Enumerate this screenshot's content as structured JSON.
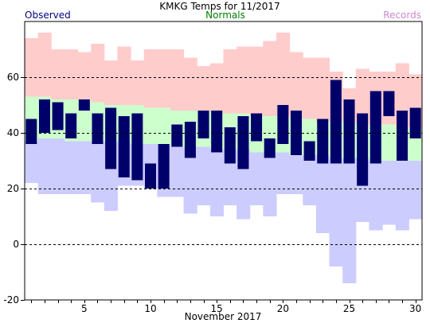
{
  "chart_data": {
    "type": "bar",
    "title": "KMKG Temps for 11/2017",
    "xlabel": "November 2017",
    "ylabel": "",
    "legend": [
      "Observed",
      "Normals",
      "Records"
    ],
    "ylim": [
      -20,
      80
    ],
    "yticks": [
      -20,
      0,
      20,
      40,
      60
    ],
    "gridlines_dashed": [
      0,
      20,
      40,
      60
    ],
    "xticks": [
      5,
      10,
      15,
      20,
      25,
      30
    ],
    "days": [
      1,
      2,
      3,
      4,
      5,
      6,
      7,
      8,
      9,
      10,
      11,
      12,
      13,
      14,
      15,
      16,
      17,
      18,
      19,
      20,
      21,
      22,
      23,
      24,
      25,
      26,
      27,
      28,
      29,
      30
    ],
    "observed_high": [
      45,
      52,
      51,
      47,
      52,
      47,
      49,
      46,
      47,
      29,
      36,
      43,
      44,
      48,
      48,
      42,
      46,
      47,
      38,
      50,
      48,
      37,
      45,
      59,
      52,
      47,
      55,
      55,
      48,
      49
    ],
    "observed_low": [
      36,
      40,
      41,
      38,
      48,
      36,
      27,
      24,
      23,
      20,
      20,
      35,
      31,
      38,
      33,
      29,
      27,
      37,
      31,
      36,
      32,
      30,
      29,
      29,
      29,
      21,
      29,
      46,
      30,
      38
    ],
    "normal_high": [
      53,
      53,
      52,
      52,
      52,
      51,
      50,
      50,
      50,
      49,
      49,
      48,
      48,
      48,
      47,
      47,
      47,
      46,
      46,
      46,
      45,
      45,
      44,
      44,
      44,
      43,
      43,
      43,
      42,
      42
    ],
    "normal_low": [
      37,
      38,
      38,
      37,
      37,
      37,
      37,
      37,
      36,
      36,
      36,
      35,
      35,
      35,
      34,
      34,
      34,
      33,
      33,
      33,
      32,
      32,
      32,
      31,
      31,
      31,
      30,
      30,
      30,
      30
    ],
    "record_high": [
      74,
      76,
      70,
      70,
      69,
      72,
      66,
      71,
      66,
      70,
      70,
      70,
      67,
      64,
      65,
      70,
      71,
      71,
      73,
      76,
      69,
      67,
      67,
      62,
      56,
      63,
      62,
      62,
      65,
      61
    ],
    "record_low": [
      22,
      18,
      18,
      18,
      18,
      15,
      12,
      21,
      21,
      20,
      17,
      17,
      11,
      14,
      10,
      14,
      9,
      14,
      10,
      18,
      18,
      14,
      4,
      -8,
      -14,
      8,
      5,
      7,
      5,
      9
    ],
    "colors": {
      "observed": "#00006b",
      "normals": "#ccffcc",
      "records_high": "#ffcccc",
      "records_low": "#ccccff",
      "legend_observed": "#000080",
      "legend_normals": "#008000",
      "legend_records": "#cc88cc"
    }
  }
}
